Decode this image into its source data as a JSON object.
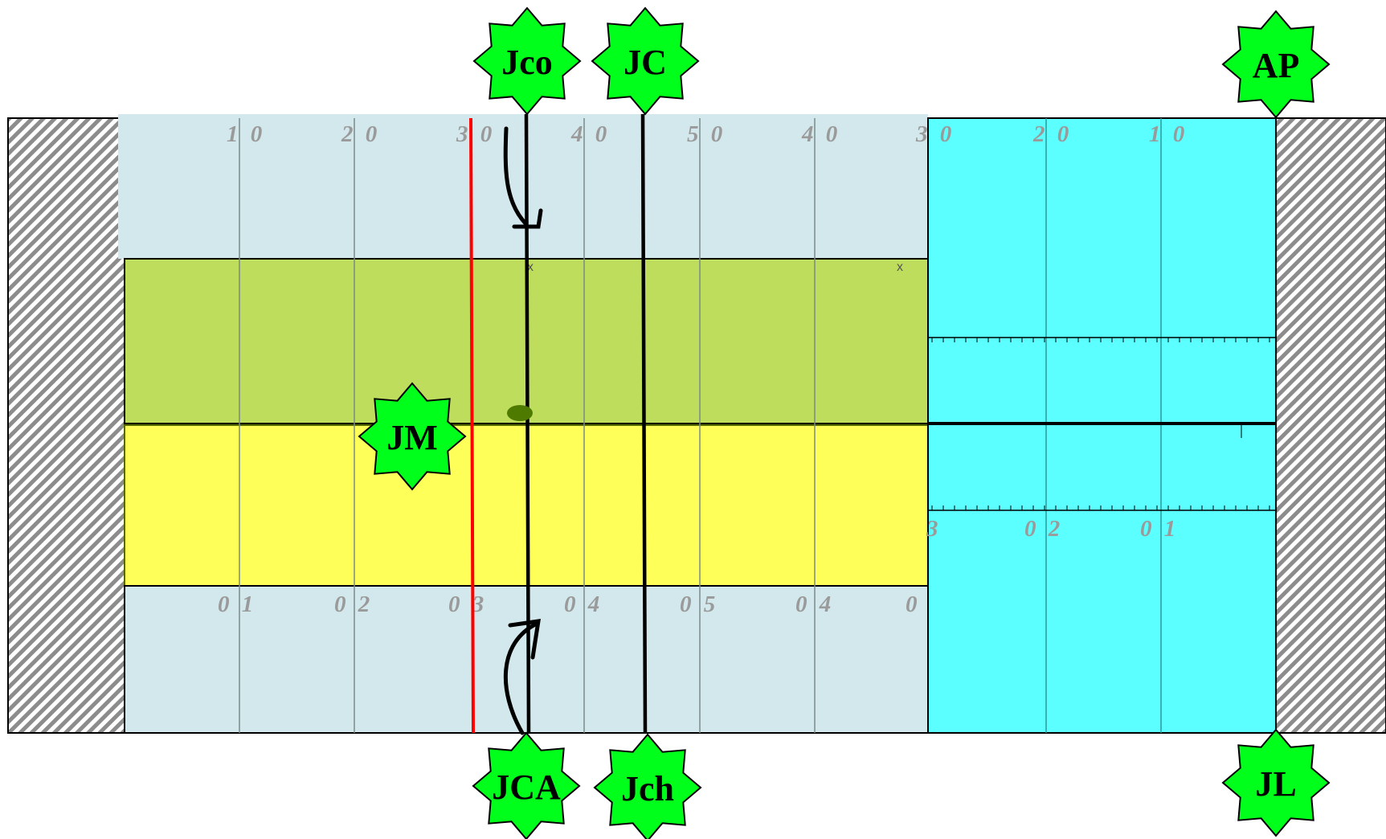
{
  "diagram": {
    "colors": {
      "endzone": "#ffffff",
      "upper_band": "#d3e8ec",
      "green_band": "#bedd5c",
      "yellow_band": "#ffff5a",
      "lower_band": "#d3e8ec",
      "cyan_zone": "#5bffff",
      "star_fill": "#00ff1a",
      "red_line": "#ff0000",
      "grid_line": "#808080"
    },
    "top_yard_labels": [
      "1 0",
      "2 0",
      "3 0",
      "4 0",
      "5 0",
      "4 0",
      "3 0",
      "2 0",
      "1 0"
    ],
    "bottom_yard_labels": [
      "0 1",
      "0 2",
      "0 3",
      "0 4",
      "0 5",
      "0 4",
      "0",
      "3",
      "0 2",
      "0 1"
    ],
    "markers": [
      {
        "id": "jco",
        "label": "Jco"
      },
      {
        "id": "jc",
        "label": "JC"
      },
      {
        "id": "ap",
        "label": "AP"
      },
      {
        "id": "jm",
        "label": "JM"
      },
      {
        "id": "jca",
        "label": "JCA"
      },
      {
        "id": "jch",
        "label": "Jch"
      },
      {
        "id": "jl",
        "label": "JL"
      }
    ],
    "x_marks": [
      "x",
      "x"
    ]
  }
}
